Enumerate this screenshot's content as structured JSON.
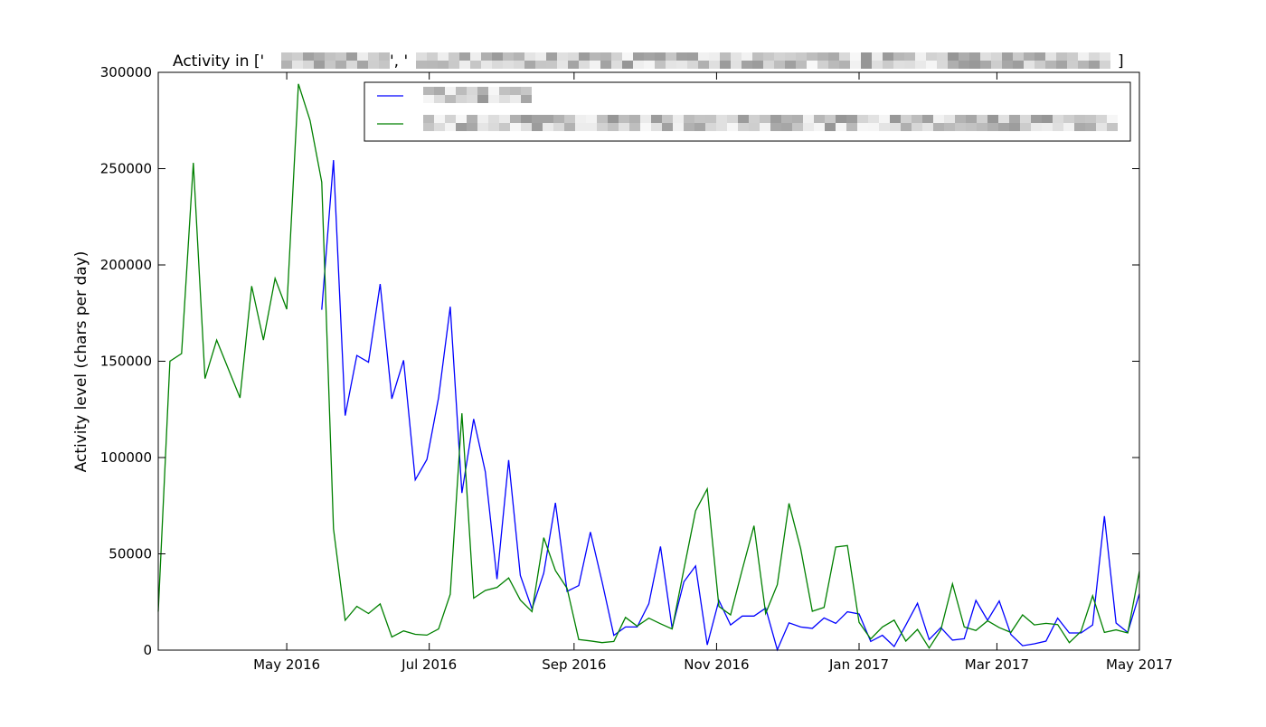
{
  "chart_data": {
    "type": "line",
    "title_prefix": "Activity in ['",
    "title_separator": "', '",
    "title_suffix": "]",
    "title_redacted": true,
    "xlabel": "",
    "ylabel": "Activity level (chars per day)",
    "xlim": [
      "2016-03-07",
      "2017-05-01"
    ],
    "ylim": [
      0,
      300000
    ],
    "yticks": [
      0,
      50000,
      100000,
      150000,
      200000,
      250000,
      300000
    ],
    "xticks": [
      {
        "date": "2016-05-01",
        "label": "May 2016"
      },
      {
        "date": "2016-07-01",
        "label": "Jul 2016"
      },
      {
        "date": "2016-09-01",
        "label": "Sep 2016"
      },
      {
        "date": "2016-11-01",
        "label": "Nov 2016"
      },
      {
        "date": "2017-01-01",
        "label": "Jan 2017"
      },
      {
        "date": "2017-03-01",
        "label": "Mar 2017"
      },
      {
        "date": "2017-05-01",
        "label": "May 2017"
      }
    ],
    "grid": false,
    "legend_placement": "upper-right",
    "legend_entries_redacted": true,
    "x": [
      "2016-03-07",
      "2016-03-12",
      "2016-03-17",
      "2016-03-22",
      "2016-03-27",
      "2016-04-01",
      "2016-04-06",
      "2016-04-11",
      "2016-04-16",
      "2016-04-21",
      "2016-04-26",
      "2016-05-01",
      "2016-05-06",
      "2016-05-11",
      "2016-05-16",
      "2016-05-21",
      "2016-05-26",
      "2016-05-31",
      "2016-06-05",
      "2016-06-10",
      "2016-06-15",
      "2016-06-20",
      "2016-06-25",
      "2016-06-30",
      "2016-07-05",
      "2016-07-10",
      "2016-07-15",
      "2016-07-20",
      "2016-07-25",
      "2016-07-30",
      "2016-08-04",
      "2016-08-09",
      "2016-08-14",
      "2016-08-19",
      "2016-08-24",
      "2016-08-29",
      "2016-09-03",
      "2016-09-08",
      "2016-09-13",
      "2016-09-18",
      "2016-09-23",
      "2016-09-28",
      "2016-10-03",
      "2016-10-08",
      "2016-10-13",
      "2016-10-18",
      "2016-10-23",
      "2016-10-28",
      "2016-11-02",
      "2016-11-07",
      "2016-11-12",
      "2016-11-17",
      "2016-11-22",
      "2016-11-27",
      "2016-12-02",
      "2016-12-07",
      "2016-12-12",
      "2016-12-17",
      "2016-12-22",
      "2016-12-27",
      "2017-01-01",
      "2017-01-06",
      "2017-01-11",
      "2017-01-16",
      "2017-01-21",
      "2017-01-26",
      "2017-01-31",
      "2017-02-05",
      "2017-02-10",
      "2017-02-15",
      "2017-02-20",
      "2017-02-25",
      "2017-03-02",
      "2017-03-07",
      "2017-03-12",
      "2017-03-17",
      "2017-03-22",
      "2017-03-27",
      "2017-04-01",
      "2017-04-06",
      "2017-04-11",
      "2017-04-16",
      "2017-04-21",
      "2017-04-26",
      "2017-05-01"
    ],
    "series": [
      {
        "color": "#0000ff",
        "values": [
          null,
          null,
          null,
          null,
          null,
          null,
          null,
          null,
          null,
          null,
          null,
          null,
          null,
          null,
          176700,
          254400,
          121800,
          153000,
          149500,
          190100,
          130500,
          150500,
          88400,
          99000,
          131100,
          178300,
          81600,
          120000,
          92600,
          36900,
          98700,
          38800,
          21400,
          40000,
          76500,
          30500,
          33500,
          61300,
          35500,
          7700,
          12000,
          12000,
          24100,
          53800,
          11300,
          35500,
          43700,
          2700,
          25800,
          13100,
          17700,
          17700,
          21800,
          200,
          14200,
          12000,
          11300,
          16700,
          13900,
          19900,
          18800,
          4500,
          7700,
          1900,
          13000,
          24300,
          5500,
          11700,
          5200,
          5900,
          25800,
          15500,
          25500,
          8100,
          2300,
          3300,
          4700,
          16600,
          8900,
          8900,
          13100,
          69600,
          14100,
          9200,
          29300
        ]
      },
      {
        "color": "#008000",
        "values": [
          20000,
          150000,
          154000,
          253000,
          141000,
          161000,
          146000,
          131000,
          189000,
          161000,
          193000,
          177000,
          294000,
          275000,
          243000,
          63000,
          15500,
          22700,
          19000,
          24000,
          6800,
          10000,
          8200,
          7800,
          11000,
          29000,
          123000,
          27000,
          31000,
          32600,
          37500,
          26000,
          20000,
          58400,
          41300,
          32100,
          5500,
          4800,
          3900,
          4500,
          17000,
          12500,
          16600,
          13700,
          11000,
          42000,
          72300,
          83700,
          22700,
          18300,
          41800,
          64600,
          19100,
          34000,
          76200,
          52700,
          20200,
          22200,
          53500,
          54300,
          14400,
          5800,
          12000,
          15600,
          4700,
          10800,
          1100,
          10500,
          34400,
          12000,
          10200,
          15200,
          11700,
          9200,
          18300,
          13100,
          13900,
          13300,
          3900,
          9700,
          28200,
          9200,
          10500,
          8900,
          41000
        ]
      }
    ]
  }
}
